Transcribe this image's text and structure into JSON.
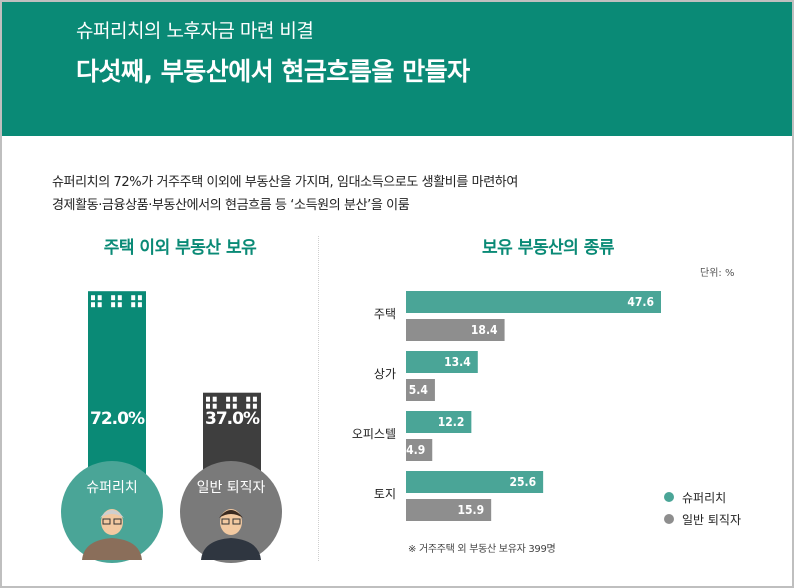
{
  "header": {
    "subtitle": "슈퍼리치의 노후자금 마련 비결",
    "title": "다섯째, 부동산에서 현금흐름을 만들자"
  },
  "intro": {
    "line1": "슈퍼리치의 72%가 거주주택 이외에 부동산을 가지며, 임대소득으로도 생활비를 마련하여",
    "line2": "경제활동·금융상품·부동산에서의 현금흐름 등 ‘소득원의 분산’을 이룸"
  },
  "left_panel": {
    "title": "주택 이외 부동산 보유"
  },
  "right_panel": {
    "title": "보유 부동산의 종류",
    "unit": "단위: %",
    "note": "※ 거주주택 외 부동산 보유자 399명"
  },
  "colors": {
    "green": "#0a8a76",
    "teal": "#4aa597",
    "gray": "#8e8e8e",
    "dark": "#3e3e3e"
  },
  "icons": [
    "building-icon",
    "person-avatar-icon"
  ],
  "chart_data": [
    {
      "type": "bar",
      "title": "주택 이외 부동산 보유",
      "categories": [
        "슈퍼리치",
        "일반 퇴직자"
      ],
      "values": [
        72.0,
        37.0
      ],
      "value_labels": [
        "72.0%",
        "37.0%"
      ],
      "ylim": [
        0,
        100
      ]
    },
    {
      "type": "bar",
      "orientation": "horizontal",
      "title": "보유 부동산의 종류",
      "categories": [
        "주택",
        "상가",
        "오피스텔",
        "토지"
      ],
      "series": [
        {
          "name": "슈퍼리치",
          "values": [
            47.6,
            13.4,
            12.2,
            25.6
          ],
          "color": "#4aa597"
        },
        {
          "name": "일반 퇴직자",
          "values": [
            18.4,
            5.4,
            4.9,
            15.9
          ],
          "color": "#8e8e8e"
        }
      ],
      "legend": "bottom-right",
      "xlim": [
        0,
        50
      ]
    }
  ]
}
